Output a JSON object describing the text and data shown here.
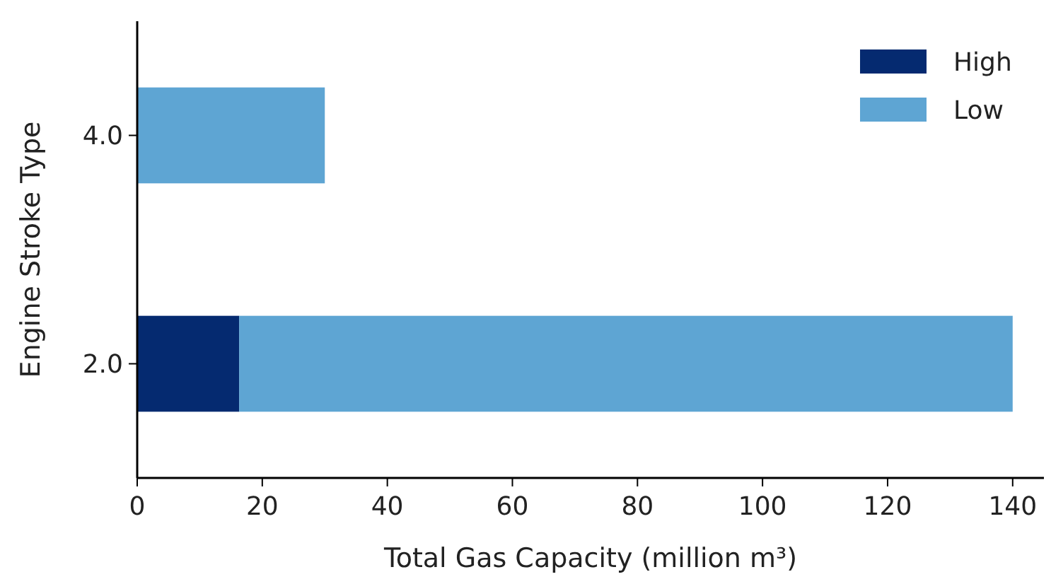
{
  "chart_data": {
    "type": "bar",
    "orientation": "horizontal",
    "stacked": true,
    "xlabel": "Total Gas Capacity (million m³)",
    "ylabel": "Engine Stroke Type",
    "categories": [
      "4.0",
      "2.0"
    ],
    "series": [
      {
        "name": "High",
        "color": "#052a70",
        "values": [
          0,
          16.3
        ]
      },
      {
        "name": "Low",
        "color": "#5ea5d3",
        "values": [
          30,
          123.7
        ]
      }
    ],
    "xlim": [
      0,
      145
    ],
    "xticks": [
      0,
      20,
      40,
      60,
      80,
      100,
      120,
      140
    ],
    "legend": "top right"
  }
}
